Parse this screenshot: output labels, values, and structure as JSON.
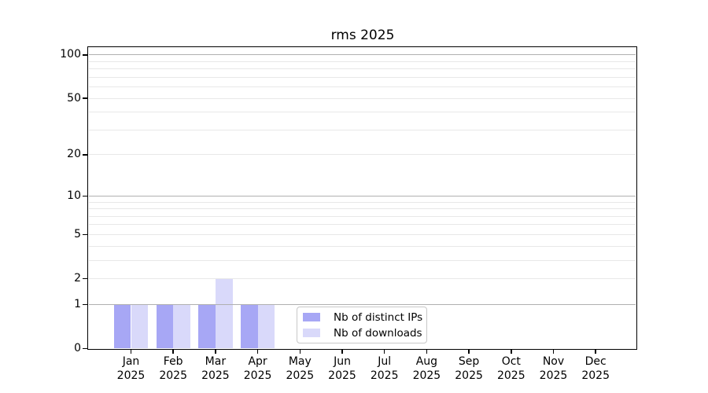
{
  "chart_data": {
    "type": "bar",
    "title": "rms 2025",
    "x_ticks": [
      {
        "month": "Jan",
        "year": "2025"
      },
      {
        "month": "Feb",
        "year": "2025"
      },
      {
        "month": "Mar",
        "year": "2025"
      },
      {
        "month": "Apr",
        "year": "2025"
      },
      {
        "month": "May",
        "year": "2025"
      },
      {
        "month": "Jun",
        "year": "2025"
      },
      {
        "month": "Jul",
        "year": "2025"
      },
      {
        "month": "Aug",
        "year": "2025"
      },
      {
        "month": "Sep",
        "year": "2025"
      },
      {
        "month": "Oct",
        "year": "2025"
      },
      {
        "month": "Nov",
        "year": "2025"
      },
      {
        "month": "Dec",
        "year": "2025"
      }
    ],
    "series": [
      {
        "name": "Nb of distinct IPs",
        "color": "#a7a7f5",
        "values": [
          1,
          1,
          1,
          1,
          0,
          0,
          0,
          0,
          0,
          0,
          0,
          0
        ]
      },
      {
        "name": "Nb of downloads",
        "color": "#d9d9fa",
        "values": [
          1,
          1,
          2,
          1,
          0,
          0,
          0,
          0,
          0,
          0,
          0,
          0
        ]
      }
    ],
    "y_ticks": [
      100,
      50,
      20,
      10,
      5,
      2,
      1,
      0
    ],
    "y_scale": "log10(value+1)",
    "y_axis_top_value": 113,
    "grid": {
      "major_values": [
        1,
        10,
        100
      ],
      "minor_values": [
        2,
        3,
        4,
        5,
        6,
        7,
        8,
        9,
        20,
        30,
        40,
        50,
        60,
        70,
        80,
        90
      ],
      "major_color": "#b0b0b0",
      "minor_color": "#e8e8e8"
    },
    "legend_position": "bottom-center-inside",
    "axis_color": "#000000",
    "background_color": "#ffffff"
  }
}
